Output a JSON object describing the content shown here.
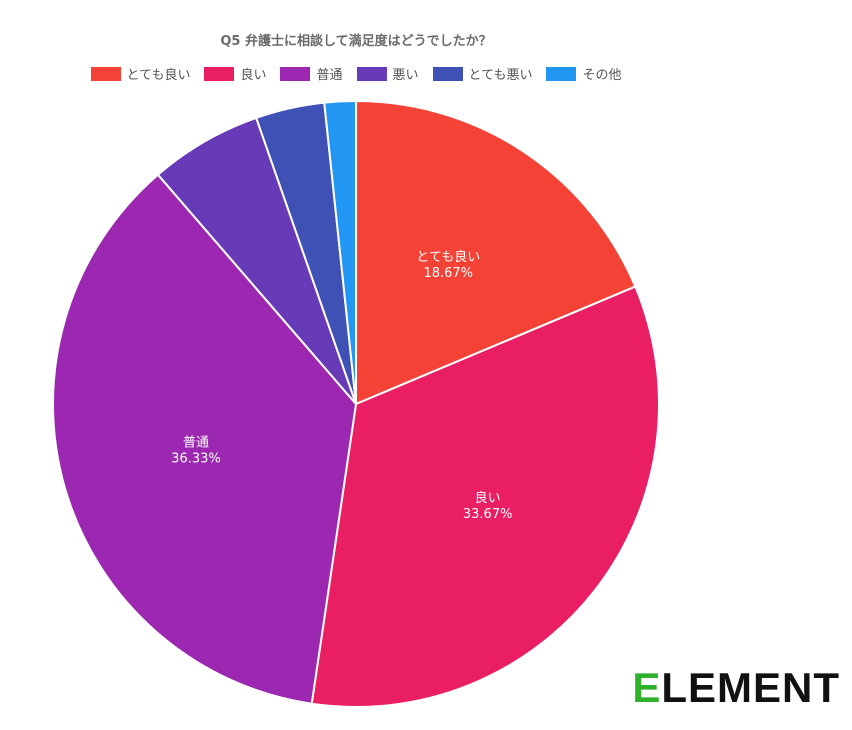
{
  "chart_data": {
    "type": "pie",
    "title": "Q5 弁護士に相談して満足度はどうでしたか？",
    "legend_position": "top",
    "slices": [
      {
        "label": "とても良い",
        "value": 18.67,
        "color": "#f44336",
        "display": "18.67%",
        "show_label": true
      },
      {
        "label": "良い",
        "value": 33.67,
        "color": "#e91e63",
        "display": "33.67%",
        "show_label": true
      },
      {
        "label": "普通",
        "value": 36.33,
        "color": "#9c27b0",
        "display": "36.33%",
        "show_label": true
      },
      {
        "label": "悪い",
        "value": 6.0,
        "color": "#673ab7",
        "display": "6.00%",
        "show_label": false
      },
      {
        "label": "とても悪い",
        "value": 3.67,
        "color": "#3f51b5",
        "display": "3.67%",
        "show_label": false
      },
      {
        "label": "その他",
        "value": 1.67,
        "color": "#2196f3",
        "display": "1.67%",
        "show_label": false
      }
    ]
  },
  "logo": {
    "first": "E",
    "rest": "LEMENT"
  }
}
